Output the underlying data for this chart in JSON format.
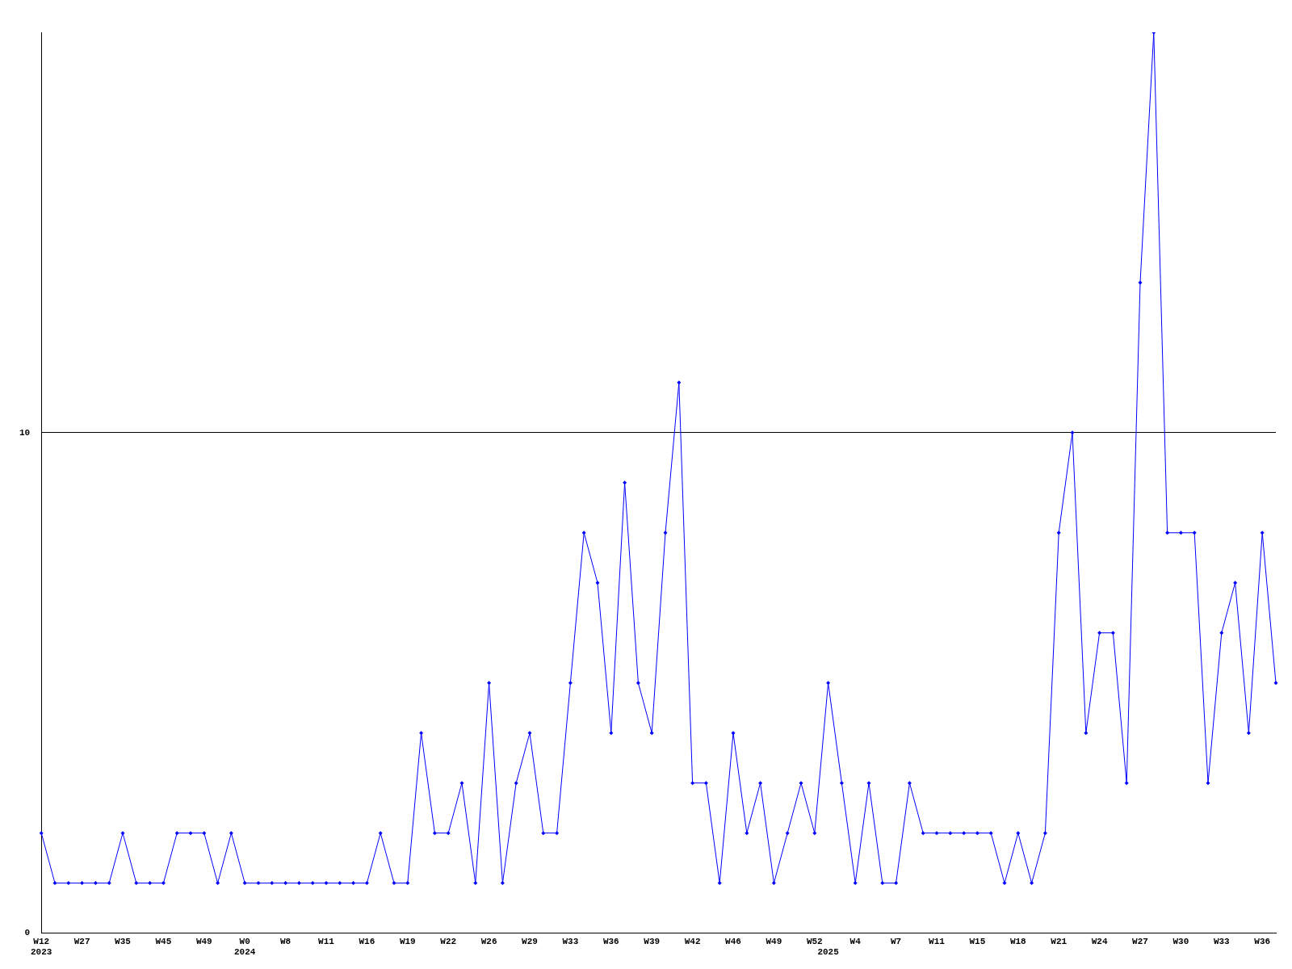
{
  "chart_data": {
    "type": "line",
    "categories": [
      "W12\n2023",
      null,
      null,
      "W27",
      null,
      null,
      "W35",
      null,
      null,
      "W45",
      null,
      null,
      "W49",
      null,
      null,
      "W0\n2024",
      null,
      null,
      "W8",
      null,
      null,
      "W11",
      null,
      null,
      "W16",
      null,
      null,
      "W19",
      null,
      null,
      "W22",
      null,
      null,
      "W26",
      null,
      null,
      "W29",
      null,
      null,
      "W33",
      null,
      null,
      "W36",
      null,
      null,
      "W39",
      null,
      null,
      "W42",
      null,
      null,
      "W46",
      null,
      null,
      "W49",
      null,
      null,
      "W52",
      "\n2025",
      null,
      "W4",
      null,
      null,
      "W7",
      null,
      null,
      "W11",
      null,
      null,
      "W15",
      null,
      null,
      "W18",
      null,
      null,
      "W21",
      null,
      null,
      "W24",
      null,
      null,
      "W27",
      null,
      null,
      "W30",
      null,
      null,
      "W33",
      null,
      null,
      "W36",
      null
    ],
    "series": [
      {
        "color": "#0000ff",
        "values": [
          2,
          1,
          1,
          1,
          1,
          1,
          2,
          1,
          1,
          1,
          2,
          2,
          2,
          1,
          2,
          1,
          1,
          1,
          1,
          1,
          1,
          1,
          1,
          1,
          1,
          2,
          1,
          1,
          4,
          2,
          2,
          3,
          1,
          5,
          1,
          3,
          4,
          2,
          2,
          5,
          8,
          7,
          4,
          9,
          5,
          4,
          8,
          11,
          3,
          3,
          1,
          4,
          2,
          3,
          1,
          2,
          3,
          2,
          5,
          3,
          1,
          3,
          1,
          1,
          3,
          2,
          2,
          2,
          2,
          2,
          2,
          1,
          2,
          1,
          2,
          8,
          10,
          4,
          6,
          6,
          3,
          13,
          18,
          8,
          8,
          8,
          3,
          6,
          7,
          4,
          8,
          5
        ]
      }
    ],
    "ylim": [
      0,
      18
    ],
    "yticks": [
      0,
      10
    ],
    "grid": "y",
    "marker": "diamond",
    "line_style": "solid"
  }
}
